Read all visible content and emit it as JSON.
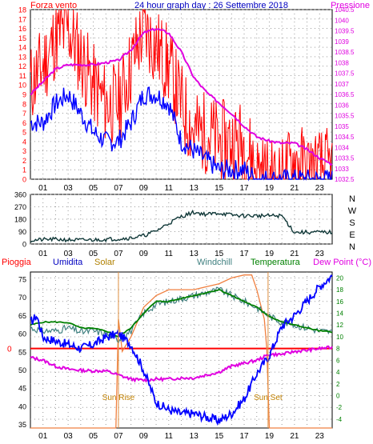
{
  "chart_data": [
    {
      "type": "line",
      "title": "24 hour graph day : 26 Settembre 2018",
      "left_label": "Forza vento",
      "right_label": "Pressione",
      "x_ticks": [
        "01",
        "03",
        "05",
        "07",
        "09",
        "11",
        "13",
        "15",
        "17",
        "19",
        "21",
        "23"
      ],
      "left_ticks": [
        "18",
        "17",
        "16",
        "15",
        "14",
        "13",
        "12",
        "11",
        "10",
        "9",
        "8",
        "7",
        "6",
        "5",
        "4",
        "3",
        "2",
        "1",
        "0"
      ],
      "right_ticks": [
        "1040.5",
        "1040",
        "1039.5",
        "1039",
        "1038.5",
        "1038",
        "1037.5",
        "1037",
        "1036.5",
        "1036",
        "1035.5",
        "1035",
        "1034.5",
        "1034",
        "1033.5",
        "1033",
        "1032.5"
      ],
      "ylim_left": [
        0,
        18
      ],
      "ylim_right": [
        1032.5,
        1040.5
      ],
      "series": [
        {
          "axis": "right",
          "color": "#e000e0",
          "x": [
            0,
            1,
            2,
            3,
            4,
            5,
            6,
            7,
            8,
            9,
            10,
            11,
            12,
            13,
            14,
            15,
            16,
            17,
            18,
            19,
            20,
            21,
            22,
            23,
            24
          ],
          "values": [
            1036.5,
            1037.1,
            1037.7,
            1037.9,
            1037.9,
            1037.9,
            1038.0,
            1038.1,
            1038.6,
            1039.4,
            1039.6,
            1039.4,
            1038.5,
            1037.3,
            1036.6,
            1036.1,
            1035.6,
            1035.0,
            1034.5,
            1034.3,
            1034.2,
            1034.2,
            1033.9,
            1033.5,
            1033.2
          ]
        },
        {
          "axis": "left",
          "color": "#ff0000",
          "x": [
            0,
            1,
            2,
            3,
            4,
            5,
            6,
            7,
            8,
            9,
            10,
            11,
            12,
            13,
            14,
            15,
            16,
            17,
            18,
            19,
            20,
            21,
            22,
            23,
            24
          ],
          "values": [
            10,
            12,
            15,
            16,
            13,
            10,
            8,
            8,
            12,
            16,
            14,
            12,
            8,
            5,
            5,
            4,
            4,
            4,
            1,
            0,
            0,
            2,
            1,
            1,
            1
          ]
        },
        {
          "axis": "left",
          "color": "#0000ff",
          "x": [
            0,
            1,
            2,
            3,
            4,
            5,
            6,
            7,
            8,
            9,
            10,
            11,
            12,
            13,
            14,
            15,
            16,
            17,
            18,
            19,
            20,
            21,
            22,
            23,
            24
          ],
          "values": [
            6,
            6,
            8,
            9,
            7,
            5,
            4,
            4,
            6,
            9,
            9,
            8,
            4,
            3,
            2,
            1,
            1,
            1,
            0,
            0,
            0,
            0,
            0,
            0,
            0
          ]
        }
      ]
    },
    {
      "type": "line",
      "y_ticks": [
        "360",
        "270",
        "180",
        "90",
        "0"
      ],
      "compass": [
        "N",
        "W",
        "S",
        "E",
        "N"
      ],
      "ylim": [
        0,
        360
      ],
      "series": [
        {
          "color": "#103838",
          "x": [
            0,
            1,
            2,
            3,
            4,
            5,
            6,
            7,
            8,
            9,
            10,
            11,
            12,
            13,
            14,
            15,
            16,
            17,
            18,
            19,
            20,
            21,
            22,
            23,
            24
          ],
          "values": [
            25,
            32,
            34,
            30,
            28,
            30,
            34,
            38,
            44,
            60,
            95,
            150,
            200,
            230,
            215,
            225,
            210,
            205,
            205,
            205,
            205,
            85,
            85,
            85,
            85
          ]
        }
      ]
    },
    {
      "type": "line",
      "legend": [
        "Pioggia",
        "Umidita",
        "Solar",
        "Windchill",
        "Temperatura",
        "Dew Point (°C)"
      ],
      "legend_colors": [
        "#ff0000",
        "#0000c0",
        "#b08000",
        "#408080",
        "#008000",
        "#e000e0"
      ],
      "left_ticks": [
        "75",
        "70",
        "65",
        "60",
        "55",
        "50",
        "45",
        "40",
        "35"
      ],
      "right_ticks": [
        "20",
        "18",
        "16",
        "14",
        "12",
        "10",
        "8",
        "6",
        "4",
        "2",
        "0",
        "-2",
        "-4"
      ],
      "rain_axis_tick": "0",
      "annotations": [
        "Sun Rise",
        "Sun Set"
      ],
      "ylim_left": [
        34,
        77
      ],
      "ylim_right": [
        -5.5,
        21
      ],
      "series": [
        {
          "name": "Umidita",
          "axis": "left",
          "color": "#0000ff",
          "x": [
            0,
            0.5,
            1,
            2,
            3,
            4,
            5,
            6,
            7,
            8,
            9,
            10,
            11,
            12,
            13,
            14,
            15,
            16,
            17,
            18,
            19,
            20,
            21,
            22,
            23,
            24
          ],
          "values": [
            63,
            65,
            59,
            58,
            57,
            56,
            57,
            59,
            60,
            57,
            50,
            41,
            39,
            38,
            38,
            37,
            36,
            38,
            42,
            49,
            54,
            62,
            65,
            69,
            73,
            76
          ]
        },
        {
          "name": "Temperatura",
          "axis": "right",
          "color": "#008000",
          "x": [
            0,
            1,
            2,
            3,
            4,
            5,
            6,
            7,
            8,
            9,
            10,
            11,
            12,
            13,
            14,
            15,
            16,
            17,
            18,
            19,
            20,
            21,
            22,
            23,
            24
          ],
          "values": [
            12,
            12.5,
            12.5,
            12.4,
            11.5,
            11.4,
            11,
            10,
            11.5,
            14,
            16,
            16,
            16.5,
            17,
            17.5,
            18,
            17,
            16,
            15,
            13.5,
            12.5,
            12,
            11.5,
            11,
            10.8
          ]
        },
        {
          "name": "Windchill",
          "axis": "right",
          "color": "#408080",
          "x": [
            0,
            1,
            2,
            3,
            4,
            5,
            6,
            7,
            8,
            9,
            10,
            11,
            12,
            13,
            14,
            15,
            16,
            17,
            18,
            19,
            20,
            21,
            22,
            23,
            24
          ],
          "values": [
            11.5,
            11,
            11,
            11.5,
            10.8,
            11,
            10.5,
            9.5,
            11,
            14,
            15.5,
            16,
            16.5,
            17,
            17.5,
            18,
            17,
            16,
            15,
            13.5,
            12.5,
            12,
            11.5,
            11,
            10.8
          ]
        },
        {
          "name": "Dew Point",
          "axis": "right",
          "color": "#e000e0",
          "x": [
            0,
            1,
            2,
            3,
            4,
            5,
            6,
            7,
            8,
            9,
            10,
            11,
            12,
            13,
            14,
            15,
            16,
            17,
            18,
            19,
            20,
            21,
            22,
            23,
            24
          ],
          "values": [
            6.5,
            6,
            5,
            4.5,
            4.3,
            4.2,
            4.2,
            3.5,
            2.8,
            2.6,
            2.8,
            2.8,
            3,
            3,
            3.5,
            4,
            5,
            5.5,
            6,
            7,
            7,
            7.5,
            7.7,
            8,
            8.2
          ]
        },
        {
          "name": "Solar",
          "axis": "right",
          "color": "#f08040",
          "x": [
            0,
            6.8,
            7,
            7.3,
            8,
            9,
            10,
            11,
            12,
            13,
            14,
            15,
            16,
            17,
            17.6,
            18,
            18.6,
            18.8,
            19,
            24
          ],
          "values": [
            -6,
            -6,
            13,
            7.5,
            10,
            15,
            17,
            18,
            18,
            18,
            18.5,
            19,
            20,
            20.5,
            20.5,
            18,
            13,
            8,
            -6,
            -6
          ]
        },
        {
          "name": "Pioggia",
          "axis": "rain",
          "color": "#ff0000",
          "x": [
            0,
            24
          ],
          "values": [
            0,
            0
          ]
        }
      ]
    }
  ]
}
